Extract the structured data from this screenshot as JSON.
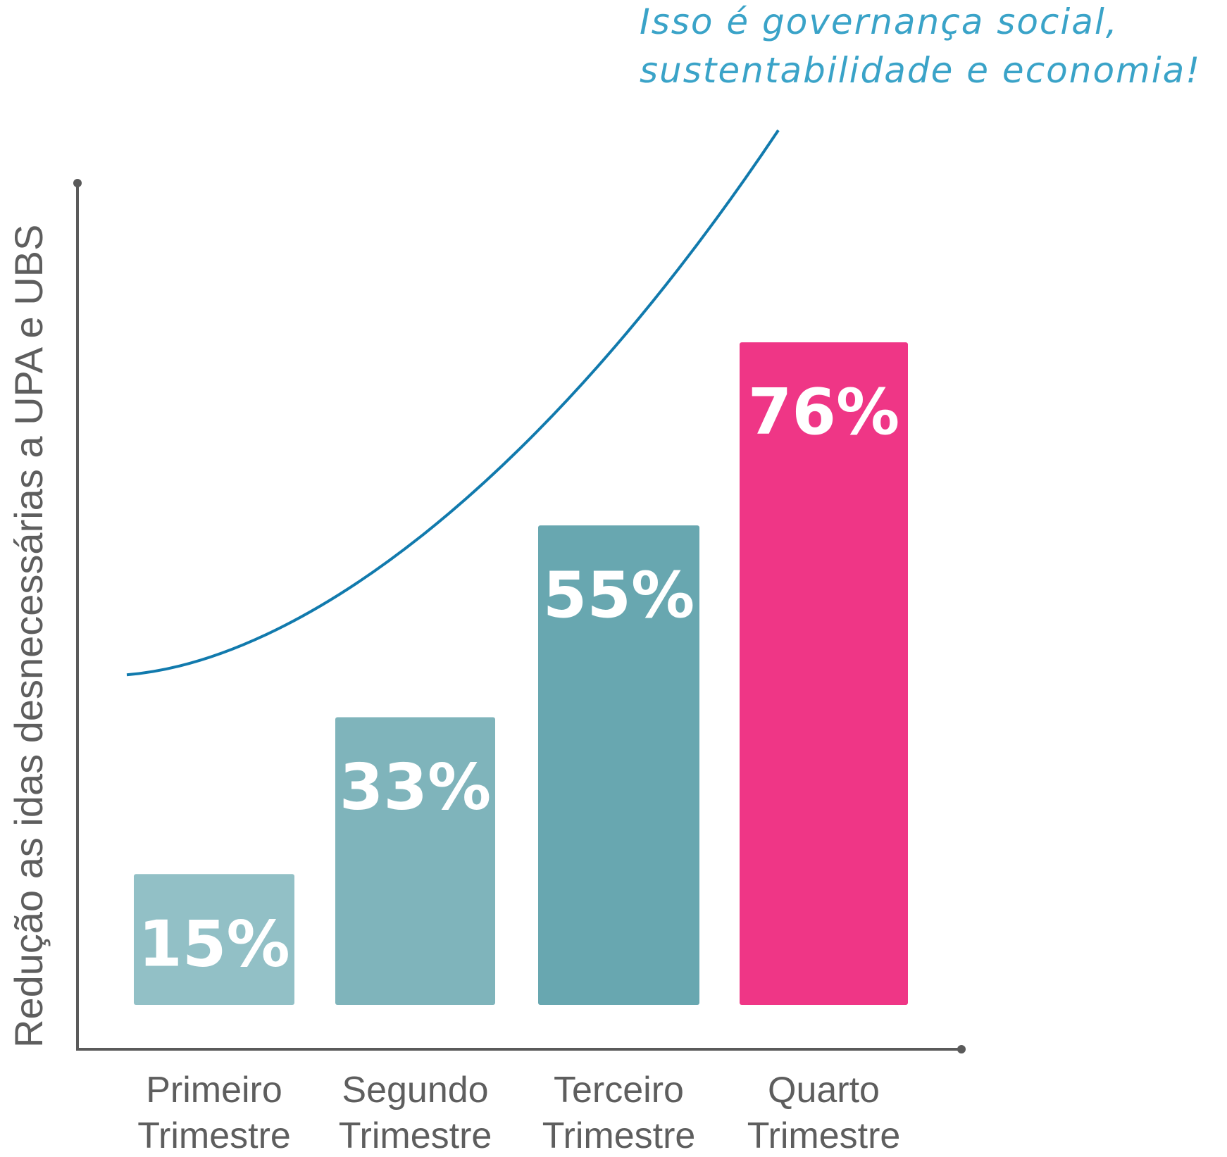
{
  "annotation": {
    "line1": "Isso é governança social,",
    "line2": "sustentabilidade e economia!"
  },
  "chart_data": {
    "type": "bar",
    "categories": [
      [
        "Primeiro",
        "Trimestre"
      ],
      [
        "Segundo",
        "Trimestre"
      ],
      [
        "Terceiro",
        "Trimestre"
      ],
      [
        "Quarto",
        "Trimestre"
      ]
    ],
    "values": [
      15,
      33,
      55,
      76
    ],
    "value_labels": [
      "15%",
      "33%",
      "55%",
      "76%"
    ],
    "ylabel": "Redução as idas desnecessárias a UPA e UBS",
    "xlabel": "",
    "ylim": [
      0,
      100
    ],
    "grid": false,
    "trend_line": true,
    "bar_colors": [
      "#92c0c6",
      "#7fb4bb",
      "#68a7b0",
      "#ef3686"
    ],
    "trend_color": "#117aad",
    "annotation_color": "#3aa3c8",
    "axis_color": "#5a5a5a",
    "text_color": "#5e5e5e",
    "value_label_color": "#ffffff"
  }
}
